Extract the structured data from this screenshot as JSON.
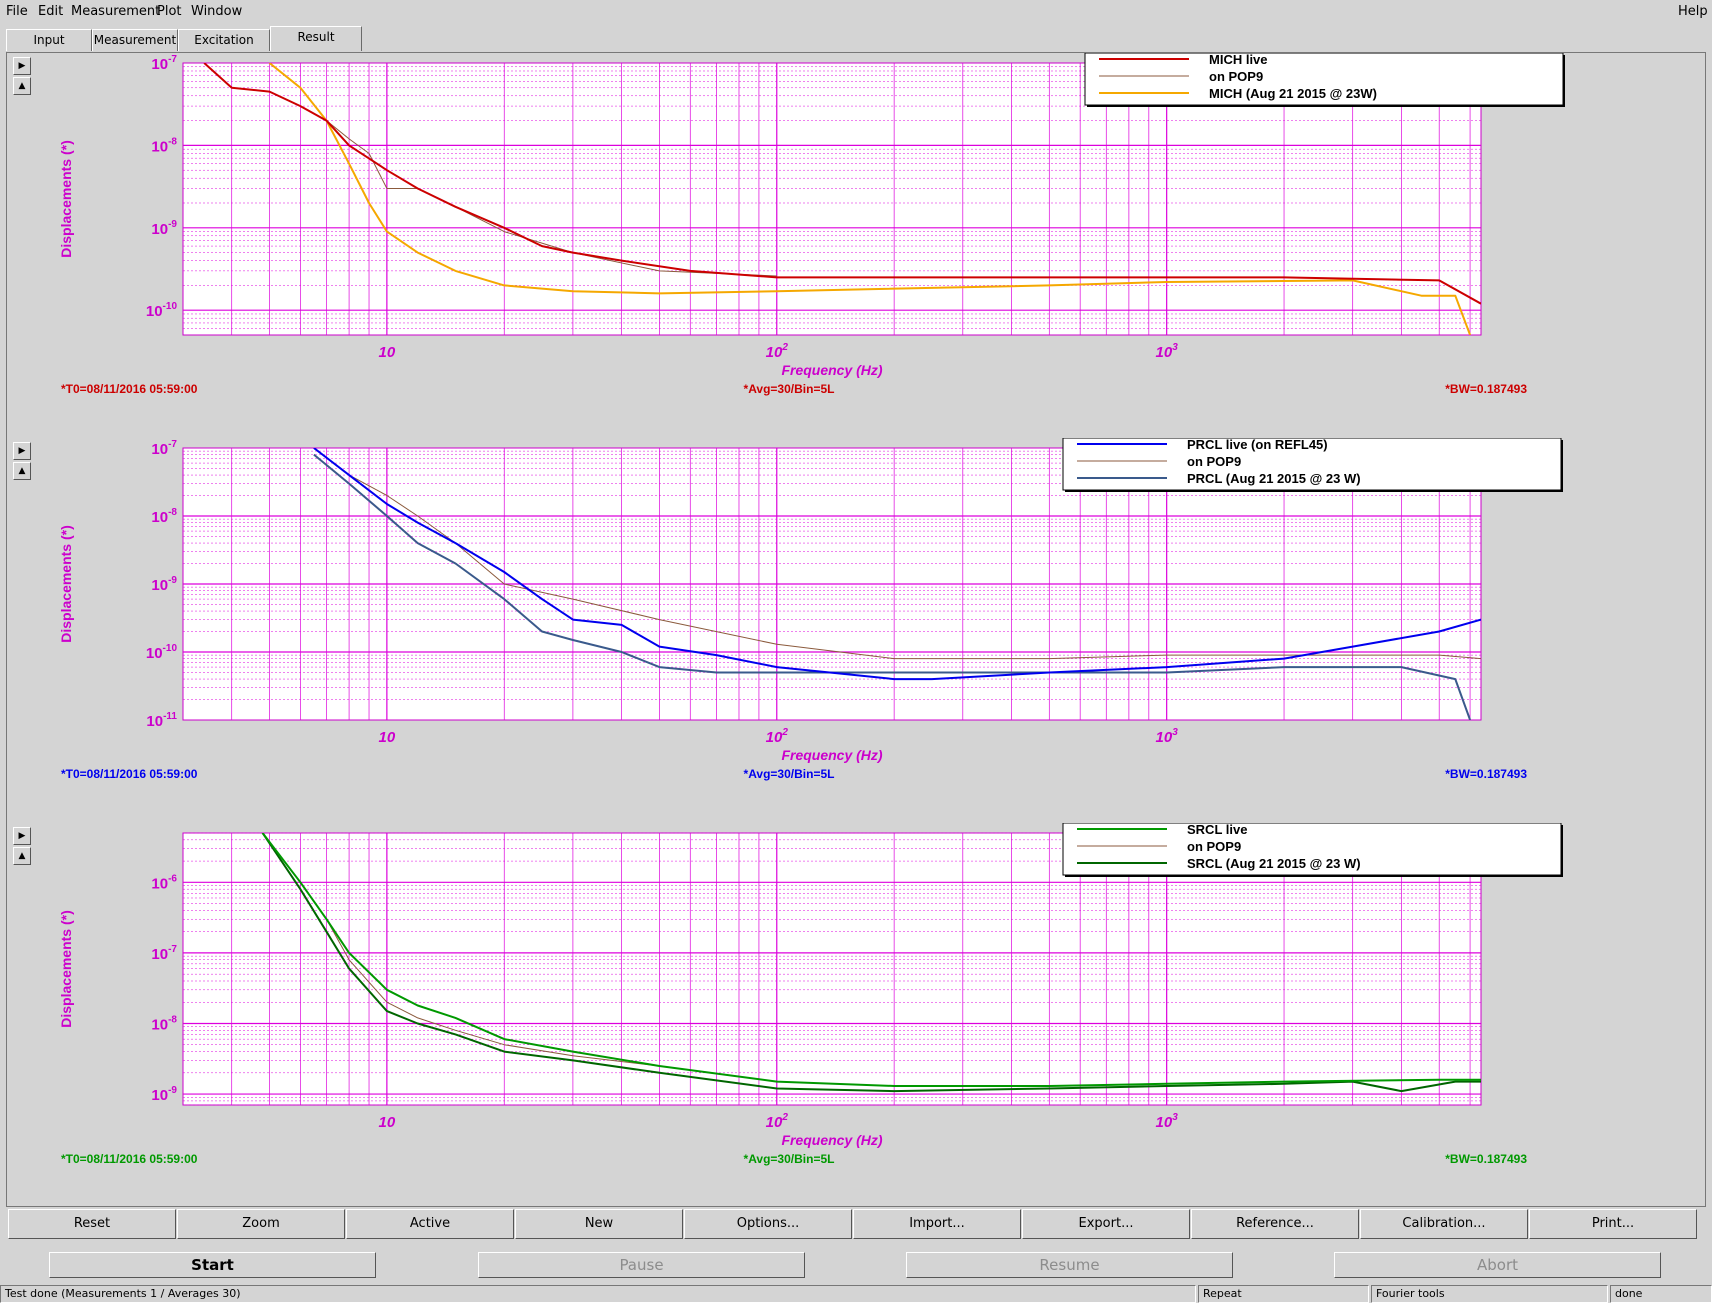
{
  "menu": {
    "file": "File",
    "edit": "Edit",
    "measurement": "Measurement",
    "plot": "Plot",
    "window": "Window",
    "help": "Help"
  },
  "tabs": [
    "Input",
    "Measurement",
    "Excitation",
    "Result"
  ],
  "active_tab": "Result",
  "scroll_up": "▶",
  "scroll_down": "▲",
  "buttons": [
    "Reset",
    "Zoom",
    "Active",
    "New",
    "Options...",
    "Import...",
    "Export...",
    "Reference...",
    "Calibration...",
    "Print..."
  ],
  "run_buttons": {
    "start": "Start",
    "pause": "Pause",
    "resume": "Resume",
    "abort": "Abort"
  },
  "status": {
    "message": "Test done (Measurements 1 / Averages 30)",
    "repeat": "Repeat",
    "tools": "Fourier tools",
    "state": "done"
  },
  "colors": {
    "axis": "#cc00cc",
    "grid": "#dd00dd",
    "mich_live": "#cc0000",
    "pop9": "#8b5a3c",
    "mich_ref": "#f5a800",
    "prcl_live": "#0000ee",
    "prcl_ref": "#3a5a8c",
    "srcl_live": "#009900",
    "srcl_ref": "#006600",
    "footer_red": "#cc0000",
    "footer_blue": "#0000ee",
    "footer_green": "#009900"
  },
  "chart_data": [
    {
      "type": "line",
      "title": "",
      "xlabel": "Frequency (Hz)",
      "ylabel": "Displacements (*)",
      "xscale": "log",
      "yscale": "log",
      "xlim": [
        3,
        6400
      ],
      "ylim": [
        5e-11,
        1e-07
      ],
      "x_tick_labels": [
        "10",
        "10^2",
        "10^3"
      ],
      "y_tick_labels": [
        "10^-7",
        "10^-8",
        "10^-9",
        "10^-10"
      ],
      "legend": "top-right",
      "grid": true,
      "footer": {
        "t0": "*T0=08/11/2016 05:59:00",
        "avg": "*Avg=30/Bin=5L",
        "bw": "*BW=0.187493"
      },
      "series": [
        {
          "name": "MICH live",
          "color": "#cc0000",
          "x": [
            3.4,
            4,
            5,
            6,
            7,
            8,
            10,
            12,
            15,
            20,
            25,
            30,
            40,
            60,
            100,
            200,
            500,
            1000,
            2000,
            5000,
            6400
          ],
          "y": [
            1e-07,
            5e-08,
            4.5e-08,
            3e-08,
            2e-08,
            1e-08,
            5e-09,
            3e-09,
            1.8e-09,
            1e-09,
            6e-10,
            5e-10,
            4e-10,
            3e-10,
            2.5e-10,
            2.5e-10,
            2.5e-10,
            2.5e-10,
            2.5e-10,
            2.3e-10,
            1.2e-10
          ]
        },
        {
          "name": "on POP9",
          "color": "#8b5a3c",
          "x": [
            5,
            6,
            7,
            8,
            9,
            10,
            12,
            15,
            20,
            30,
            50,
            100
          ],
          "y": [
            4.5e-08,
            3e-08,
            2e-08,
            1.2e-08,
            8e-09,
            3e-09,
            3e-09,
            1.8e-09,
            9e-10,
            5e-10,
            3e-10,
            2.6e-10
          ]
        },
        {
          "name": "MICH (Aug 21 2015 @ 23W)",
          "color": "#f5a800",
          "x": [
            5,
            6,
            7,
            8,
            9,
            10,
            12,
            15,
            20,
            30,
            50,
            100,
            500,
            1000,
            3000,
            4500,
            5500,
            6000
          ],
          "y": [
            1e-07,
            5e-08,
            2e-08,
            6e-09,
            2e-09,
            9e-10,
            5e-10,
            3e-10,
            2e-10,
            1.7e-10,
            1.6e-10,
            1.7e-10,
            2e-10,
            2.2e-10,
            2.3e-10,
            1.5e-10,
            1.5e-10,
            5e-11
          ]
        }
      ]
    },
    {
      "type": "line",
      "title": "",
      "xlabel": "Frequency (Hz)",
      "ylabel": "Displacements (*)",
      "xscale": "log",
      "yscale": "log",
      "xlim": [
        3,
        6400
      ],
      "ylim": [
        1e-11,
        1e-07
      ],
      "x_tick_labels": [
        "10",
        "10^2",
        "10^3"
      ],
      "y_tick_labels": [
        "10^-7",
        "10^-8",
        "10^-9",
        "10^-10",
        "10^-11"
      ],
      "legend": "top-right",
      "grid": true,
      "footer": {
        "t0": "*T0=08/11/2016 05:59:00",
        "avg": "*Avg=30/Bin=5L",
        "bw": "*BW=0.187493"
      },
      "series": [
        {
          "name": "PRCL live (on REFL45)",
          "color": "#0000ee",
          "x": [
            6.5,
            8,
            10,
            12,
            15,
            20,
            25,
            30,
            40,
            50,
            70,
            100,
            200,
            250,
            500,
            1000,
            2000,
            3000,
            5000,
            6400
          ],
          "y": [
            1e-07,
            4e-08,
            1.5e-08,
            8e-09,
            4e-09,
            1.5e-09,
            6e-10,
            3e-10,
            2.5e-10,
            1.2e-10,
            9e-11,
            6e-11,
            4e-11,
            4e-11,
            5e-11,
            6e-11,
            8e-11,
            1.2e-10,
            2e-10,
            3e-10
          ]
        },
        {
          "name": "on POP9",
          "color": "#8b5a3c",
          "x": [
            8,
            10,
            12,
            15,
            20,
            30,
            50,
            100,
            200,
            500,
            1000,
            2000,
            5000,
            6400
          ],
          "y": [
            4e-08,
            2e-08,
            1e-08,
            4e-09,
            1e-09,
            6e-10,
            3e-10,
            1.3e-10,
            8e-11,
            8e-11,
            9e-11,
            9e-11,
            9e-11,
            8e-11
          ]
        },
        {
          "name": "PRCL (Aug 21 2015 @ 23 W)",
          "color": "#3a5a8c",
          "x": [
            6.5,
            8,
            10,
            12,
            15,
            20,
            25,
            30,
            40,
            50,
            70,
            100,
            200,
            500,
            1000,
            2000,
            4000,
            5500,
            6000
          ],
          "y": [
            8e-08,
            3e-08,
            1e-08,
            4e-09,
            2e-09,
            6e-10,
            2e-10,
            1.5e-10,
            1e-10,
            6e-11,
            5e-11,
            5e-11,
            5e-11,
            5e-11,
            5e-11,
            6e-11,
            6e-11,
            4e-11,
            1e-11
          ]
        }
      ]
    },
    {
      "type": "line",
      "title": "",
      "xlabel": "Frequency (Hz)",
      "ylabel": "Displacements (*)",
      "xscale": "log",
      "yscale": "log",
      "xlim": [
        3,
        6400
      ],
      "ylim": [
        7e-10,
        5e-06
      ],
      "x_tick_labels": [
        "10",
        "10^2",
        "10^3"
      ],
      "y_tick_labels": [
        "10^-6",
        "10^-7",
        "10^-8",
        "10^-9"
      ],
      "legend": "top-right",
      "grid": true,
      "footer": {
        "t0": "*T0=08/11/2016 05:59:00",
        "avg": "*Avg=30/Bin=5L",
        "bw": "*BW=0.187493"
      },
      "series": [
        {
          "name": "SRCL live",
          "color": "#009900",
          "x": [
            4.8,
            6,
            7,
            8,
            10,
            12,
            15,
            20,
            30,
            50,
            100,
            200,
            500,
            1000,
            2000,
            5000,
            6400
          ],
          "y": [
            5e-06,
            1e-06,
            3e-07,
            1e-07,
            3e-08,
            1.8e-08,
            1.2e-08,
            6e-09,
            4e-09,
            2.5e-09,
            1.5e-09,
            1.3e-09,
            1.3e-09,
            1.4e-09,
            1.5e-09,
            1.6e-09,
            1.6e-09
          ]
        },
        {
          "name": "on POP9",
          "color": "#8b5a3c",
          "x": [
            6,
            7,
            8,
            10,
            12,
            15,
            20,
            30,
            50,
            100,
            200
          ],
          "y": [
            1e-06,
            3e-07,
            8e-08,
            2e-08,
            1.2e-08,
            8e-09,
            5e-09,
            3.5e-09,
            2.5e-09,
            1.5e-09,
            1.3e-09
          ]
        },
        {
          "name": "SRCL (Aug 21 2015 @ 23 W)",
          "color": "#006600",
          "x": [
            4.8,
            6,
            7,
            8,
            10,
            12,
            15,
            20,
            30,
            50,
            100,
            200,
            500,
            1000,
            2000,
            3000,
            4000,
            5500,
            6400
          ],
          "y": [
            5e-06,
            8e-07,
            2e-07,
            6e-08,
            1.5e-08,
            1e-08,
            7e-09,
            4e-09,
            3e-09,
            2e-09,
            1.2e-09,
            1.1e-09,
            1.2e-09,
            1.3e-09,
            1.4e-09,
            1.5e-09,
            1.1e-09,
            1.5e-09,
            1.5e-09
          ]
        }
      ]
    }
  ]
}
